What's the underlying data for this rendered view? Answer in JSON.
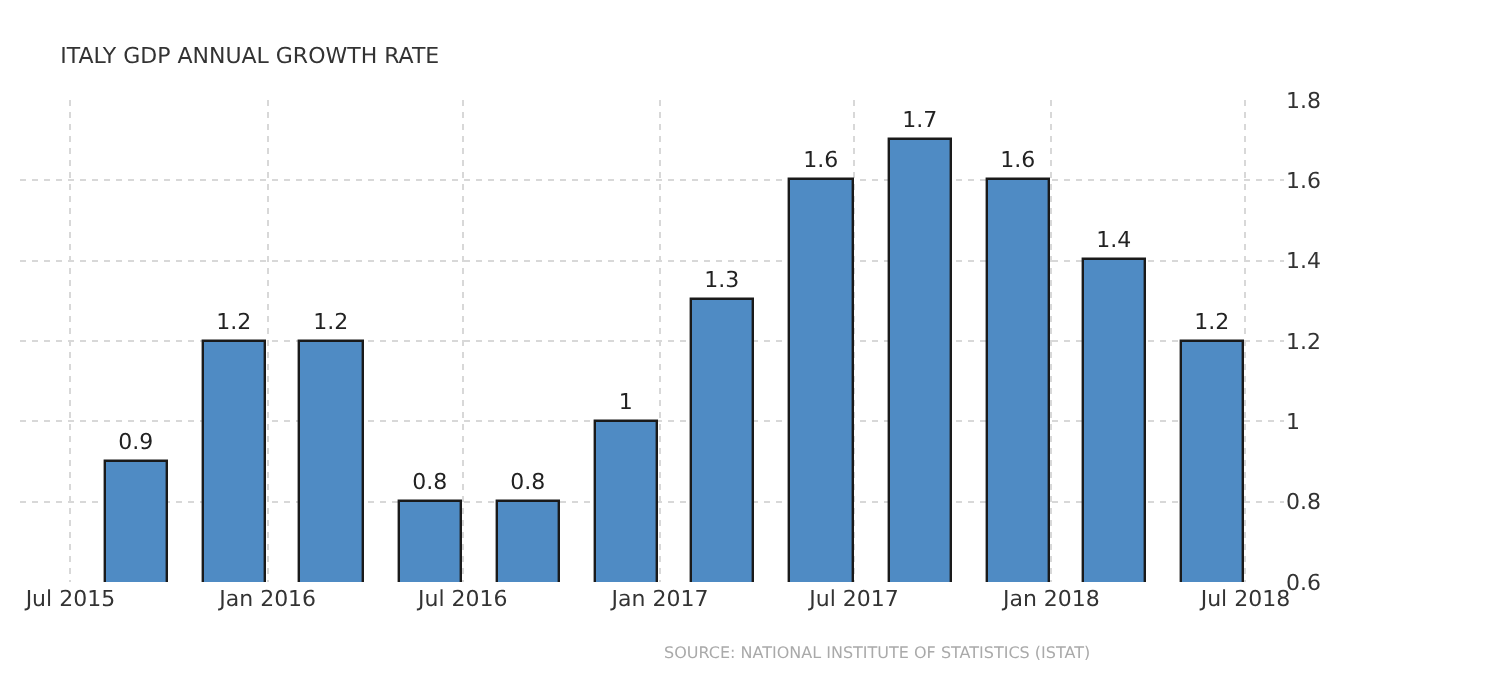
{
  "chart_data": {
    "type": "bar",
    "title": "ITALY GDP ANNUAL GROWTH RATE",
    "x": [
      "2015-09-01",
      "2015-12-01",
      "2016-03-01",
      "2016-06-01",
      "2016-09-01",
      "2016-12-01",
      "2017-03-01",
      "2017-06-01",
      "2017-09-01",
      "2017-12-01",
      "2018-03-01",
      "2018-06-01"
    ],
    "values": [
      0.9,
      1.2,
      1.2,
      0.8,
      0.8,
      1,
      1.3,
      1.6,
      1.7,
      1.6,
      1.4,
      1.2
    ],
    "color": "#4f8bc4",
    "data_labels": true,
    "xlim": [
      "2015-05-15",
      "2018-08-06"
    ],
    "xticks": [
      {
        "value": "2015-07-01",
        "label": "Jul 2015"
      },
      {
        "value": "2016-01-01",
        "label": "Jan 2016"
      },
      {
        "value": "2016-07-01",
        "label": "Jul 2016"
      },
      {
        "value": "2017-01-01",
        "label": "Jan 2017"
      },
      {
        "value": "2017-07-01",
        "label": "Jul 2017"
      },
      {
        "value": "2018-01-01",
        "label": "Jan 2018"
      },
      {
        "value": "2018-07-01",
        "label": "Jul 2018"
      }
    ],
    "ylim": [
      0.6,
      1.8
    ],
    "yticks": [
      0.6,
      0.8,
      1,
      1.2,
      1.4,
      1.6,
      1.8
    ],
    "grid": true,
    "annotations": [
      "SOURCE: NATIONAL INSTITUTE OF STATISTICS (ISTAT)"
    ]
  }
}
